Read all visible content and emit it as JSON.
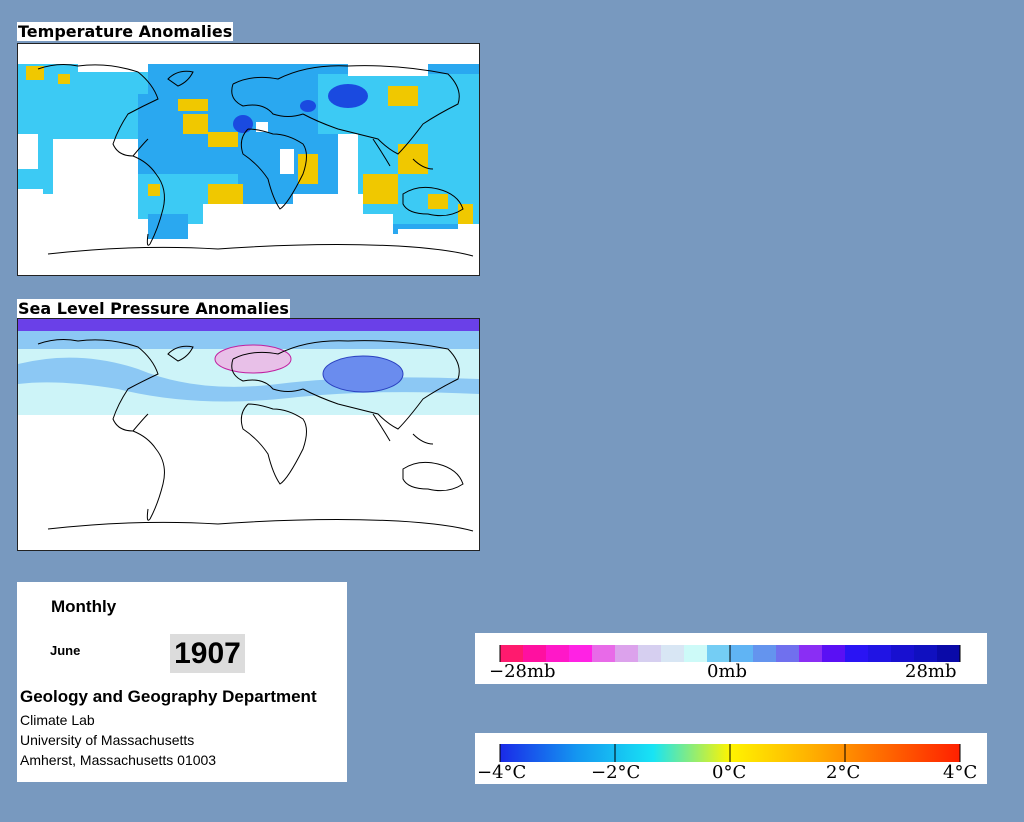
{
  "temperature_map": {
    "title": "Temperature Anomalies"
  },
  "pressure_map": {
    "title": "Sea Level Pressure Anomalies"
  },
  "info": {
    "frequency": "Monthly",
    "month": "June",
    "year": "1907",
    "department": "Geology and Geography Department",
    "lab": "Climate Lab",
    "university": "University of Massachusetts",
    "address": "Amherst, Massachusetts 01003"
  },
  "pressure_legend": {
    "labels": [
      "−28mb",
      "0mb",
      "28mb"
    ],
    "colors": [
      "#ff1a6e",
      "#ff10a0",
      "#ff18c8",
      "#ff22e4",
      "#e86ae8",
      "#dca2ec",
      "#d6cff0",
      "#d8e6f4",
      "#cdfaf8",
      "#74cdf4",
      "#60b4f4",
      "#6494ee",
      "#7070ee",
      "#8a2ef4",
      "#5a10f4",
      "#2a14f4",
      "#2014e4",
      "#1810d0",
      "#1010c0",
      "#0a0aa8"
    ]
  },
  "temperature_legend": {
    "labels": [
      "−4°C",
      "−2°C",
      "0°C",
      "2°C",
      "4°C"
    ],
    "gradient": [
      "#1a2ae8",
      "#1496f0",
      "#18e4f4",
      "#fff400",
      "#ffb400",
      "#ff6a00",
      "#ff2000"
    ]
  },
  "map_colors": {
    "land_outline": "#000000",
    "no_data": "#ffffff",
    "temp_cool": "#2aa8f0",
    "temp_cool_light": "#3ccaf4",
    "temp_warm": "#f0c800",
    "temp_cold": "#1a4ae0",
    "slp_high": "#6a40e8",
    "slp_mid": "#8cc8f4",
    "slp_light": "#cdf4f8",
    "slp_low": "#e8c0e8"
  }
}
